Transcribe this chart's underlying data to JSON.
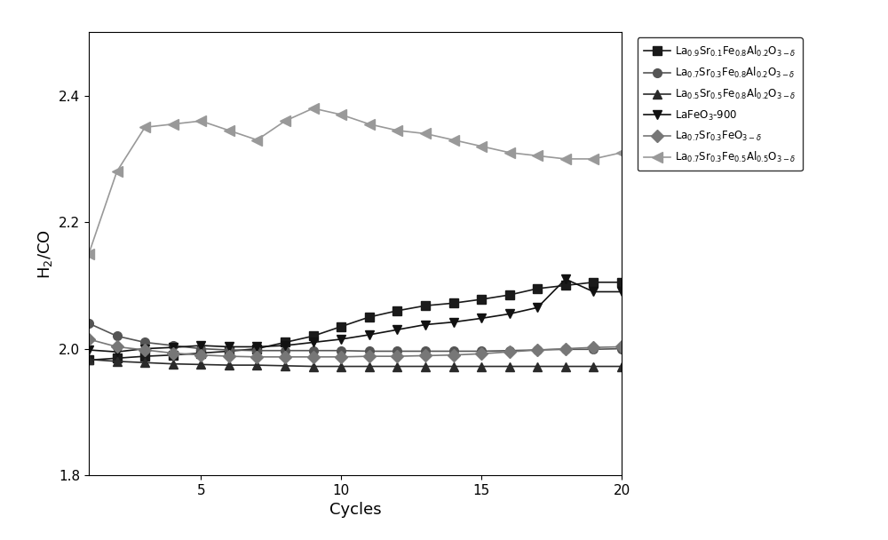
{
  "title": "",
  "xlabel": "Cycles",
  "ylabel": "H$_2$/CO",
  "xlim": [
    1,
    20
  ],
  "ylim": [
    1.8,
    2.5
  ],
  "yticks": [
    1.8,
    2.0,
    2.2,
    2.4
  ],
  "xticks": [
    5,
    10,
    15,
    20
  ],
  "figsize": [
    10.0,
    6.08
  ],
  "dpi": 100,
  "series": [
    {
      "label": "La$_{0.9}$Sr$_{0.1}$Fe$_{0.8}$Al$_{0.2}$O$_{3-\\delta}$",
      "color": "#1a1a1a",
      "marker": "s",
      "markersize": 7,
      "x": [
        1,
        2,
        3,
        4,
        5,
        6,
        7,
        8,
        9,
        10,
        11,
        12,
        13,
        14,
        15,
        16,
        17,
        18,
        19,
        20
      ],
      "y": [
        1.982,
        1.985,
        1.988,
        1.99,
        1.993,
        1.996,
        2.0,
        2.01,
        2.02,
        2.035,
        2.05,
        2.06,
        2.068,
        2.072,
        2.078,
        2.085,
        2.095,
        2.1,
        2.105,
        2.105
      ]
    },
    {
      "label": "La$_{0.7}$Sr$_{0.3}$Fe$_{0.8}$Al$_{0.2}$O$_{3-\\delta}$",
      "color": "#555555",
      "marker": "o",
      "markersize": 7,
      "x": [
        1,
        2,
        3,
        4,
        5,
        6,
        7,
        8,
        9,
        10,
        11,
        12,
        13,
        14,
        15,
        16,
        17,
        18,
        19,
        20
      ],
      "y": [
        2.04,
        2.02,
        2.01,
        2.005,
        2.0,
        1.998,
        1.997,
        1.997,
        1.997,
        1.997,
        1.996,
        1.996,
        1.996,
        1.996,
        1.996,
        1.997,
        1.998,
        1.999,
        1.999,
        2.0
      ]
    },
    {
      "label": "La$_{0.5}$Sr$_{0.5}$Fe$_{0.8}$Al$_{0.2}$O$_{3-\\delta}$",
      "color": "#2a2a2a",
      "marker": "^",
      "markersize": 7,
      "x": [
        1,
        2,
        3,
        4,
        5,
        6,
        7,
        8,
        9,
        10,
        11,
        12,
        13,
        14,
        15,
        16,
        17,
        18,
        19,
        20
      ],
      "y": [
        1.983,
        1.98,
        1.978,
        1.976,
        1.975,
        1.974,
        1.974,
        1.973,
        1.972,
        1.972,
        1.972,
        1.972,
        1.972,
        1.972,
        1.972,
        1.972,
        1.972,
        1.972,
        1.972,
        1.972
      ]
    },
    {
      "label": "LaFeO$_3$-900",
      "color": "#111111",
      "marker": "v",
      "markersize": 7,
      "x": [
        1,
        2,
        3,
        4,
        5,
        6,
        7,
        8,
        9,
        10,
        11,
        12,
        13,
        14,
        15,
        16,
        17,
        18,
        19,
        20
      ],
      "y": [
        1.998,
        1.995,
        2.0,
        2.002,
        2.005,
        2.003,
        2.003,
        2.005,
        2.01,
        2.015,
        2.022,
        2.03,
        2.038,
        2.042,
        2.048,
        2.055,
        2.065,
        2.11,
        2.09,
        2.09
      ]
    },
    {
      "label": "La$_{0.7}$Sr$_{0.3}$FeO$_{3-\\delta}$",
      "color": "#777777",
      "marker": "D",
      "markersize": 7,
      "x": [
        1,
        2,
        3,
        4,
        5,
        6,
        7,
        8,
        9,
        10,
        11,
        12,
        13,
        14,
        15,
        16,
        17,
        18,
        19,
        20
      ],
      "y": [
        2.015,
        2.003,
        1.998,
        1.993,
        1.99,
        1.988,
        1.987,
        1.987,
        1.987,
        1.987,
        1.988,
        1.988,
        1.989,
        1.99,
        1.992,
        1.995,
        1.998,
        2.0,
        2.002,
        2.003
      ]
    },
    {
      "label": "La$_{0.7}$Sr$_{0.3}$Fe$_{0.5}$Al$_{0.5}$O$_{3-\\delta}$",
      "color": "#999999",
      "marker": "<",
      "markersize": 9,
      "x": [
        1,
        2,
        3,
        4,
        5,
        6,
        7,
        8,
        9,
        10,
        11,
        12,
        13,
        14,
        15,
        16,
        17,
        18,
        19,
        20
      ],
      "y": [
        2.15,
        2.28,
        2.35,
        2.355,
        2.36,
        2.345,
        2.33,
        2.36,
        2.38,
        2.37,
        2.355,
        2.345,
        2.34,
        2.33,
        2.32,
        2.31,
        2.305,
        2.3,
        2.3,
        2.31
      ]
    }
  ]
}
